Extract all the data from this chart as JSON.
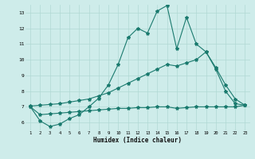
{
  "xlabel": "Humidex (Indice chaleur)",
  "bg_color": "#ceecea",
  "line_color": "#1a7a6e",
  "grid_color": "#b0d8d4",
  "xmin": 0.5,
  "xmax": 23.5,
  "ymin": 5.5,
  "ymax": 13.5,
  "yticks": [
    6,
    7,
    8,
    9,
    10,
    11,
    12,
    13
  ],
  "xticks": [
    1,
    2,
    3,
    4,
    5,
    6,
    7,
    8,
    9,
    10,
    11,
    12,
    13,
    14,
    15,
    16,
    17,
    18,
    19,
    20,
    21,
    22,
    23
  ],
  "line1_x": [
    1,
    2,
    3,
    4,
    5,
    6,
    7,
    8,
    9,
    10,
    11,
    12,
    13,
    14,
    15,
    16,
    17,
    18,
    19,
    20,
    21,
    22,
    23
  ],
  "line1_y": [
    7.0,
    6.1,
    5.75,
    5.9,
    6.25,
    6.5,
    7.0,
    7.55,
    8.4,
    9.7,
    11.4,
    12.0,
    11.7,
    13.1,
    13.45,
    10.7,
    12.7,
    11.0,
    10.5,
    9.4,
    8.0,
    7.2,
    7.1
  ],
  "line2_x": [
    1,
    2,
    3,
    4,
    5,
    6,
    7,
    8,
    9,
    10,
    11,
    12,
    13,
    14,
    15,
    16,
    17,
    18,
    19,
    20,
    21,
    22,
    23
  ],
  "line2_y": [
    7.05,
    7.1,
    7.15,
    7.2,
    7.3,
    7.4,
    7.5,
    7.7,
    7.9,
    8.2,
    8.5,
    8.8,
    9.1,
    9.4,
    9.7,
    9.6,
    9.8,
    10.0,
    10.5,
    9.5,
    8.4,
    7.5,
    7.1
  ],
  "line3_x": [
    1,
    2,
    3,
    4,
    5,
    6,
    7,
    8,
    9,
    10,
    11,
    12,
    13,
    14,
    15,
    16,
    17,
    18,
    19,
    20,
    21,
    22,
    23
  ],
  "line3_y": [
    7.0,
    6.5,
    6.55,
    6.6,
    6.65,
    6.7,
    6.75,
    6.8,
    6.85,
    6.9,
    6.9,
    6.95,
    6.95,
    7.0,
    7.0,
    6.9,
    6.95,
    7.0,
    7.0,
    7.0,
    7.0,
    7.0,
    7.1
  ]
}
